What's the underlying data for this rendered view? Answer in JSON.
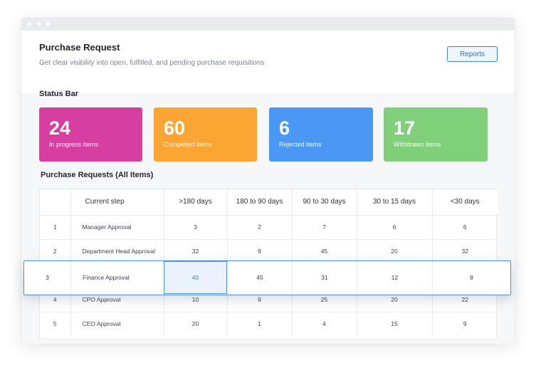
{
  "header": {
    "title": "Purchase Request",
    "subtitle": "Get clear visibility into open, fulfilled, and pending purchase requisitions",
    "reports_label": "Reports"
  },
  "status_bar": {
    "title": "Status Bar",
    "cards": [
      {
        "value": "24",
        "label": "In progress items",
        "color": "#d63fa0"
      },
      {
        "value": "60",
        "label": "Completed items",
        "color": "#fba534"
      },
      {
        "value": "6",
        "label": "Rejected items",
        "color": "#4a97f4"
      },
      {
        "value": "17",
        "label": "Withdrawn items",
        "color": "#7fcf7b"
      }
    ]
  },
  "table": {
    "title": "Purchase Requests (All Items)",
    "columns": [
      "",
      "Current step",
      ">180 days",
      "180 to 90 days",
      "90 to 30 days",
      "30 to 15 days",
      "<30 days"
    ],
    "rows": [
      [
        "1",
        "Manager Approval",
        "3",
        "2",
        "7",
        "6",
        "6"
      ],
      [
        "2",
        "Department Head Approval",
        "32",
        "9",
        "45",
        "20",
        "32"
      ],
      [
        "3",
        "Finance Approval",
        "40",
        "45",
        "31",
        "12",
        "8"
      ],
      [
        "4",
        "CPO Approval",
        "10",
        "9",
        "25",
        "20",
        "22"
      ],
      [
        "5",
        "CEO Approval",
        "20",
        "1",
        "4",
        "15",
        "9"
      ]
    ],
    "highlighted_row": 2,
    "selected_cell": "40"
  }
}
